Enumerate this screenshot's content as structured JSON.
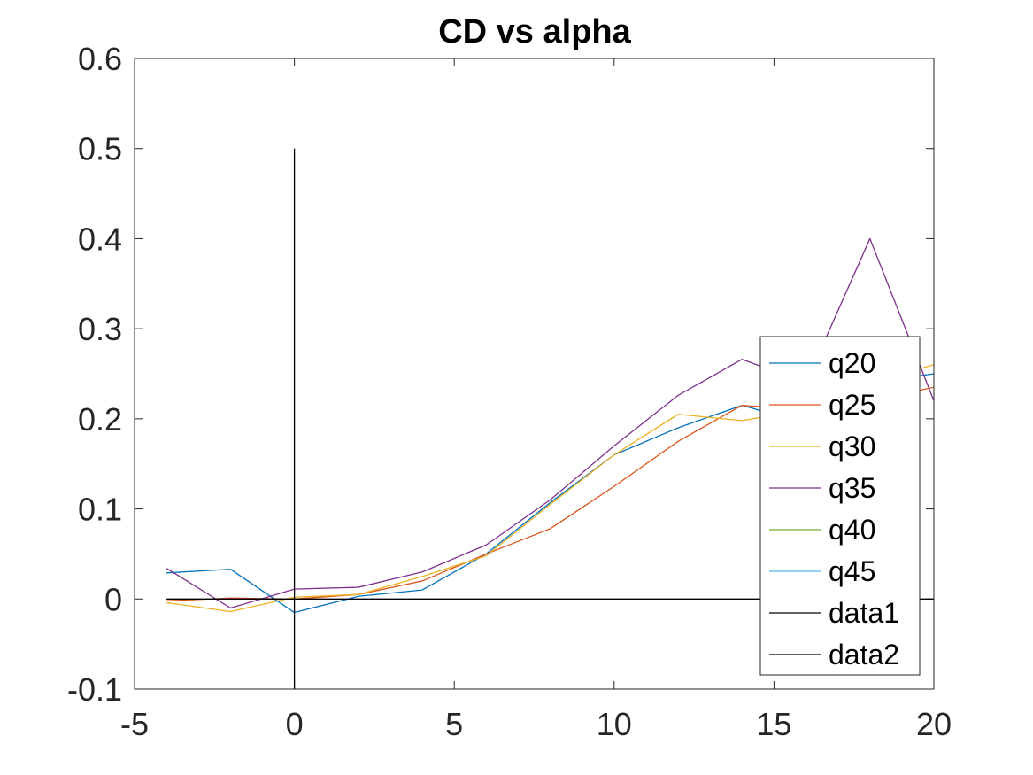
{
  "chart_data": {
    "type": "line",
    "title": "CD vs alpha",
    "xlabel": "",
    "ylabel": "",
    "xlim": [
      -5,
      20
    ],
    "ylim": [
      -0.1,
      0.6
    ],
    "x_ticks": [
      -5,
      0,
      5,
      10,
      15,
      20
    ],
    "y_ticks": [
      -0.1,
      0,
      0.1,
      0.2,
      0.3,
      0.4,
      0.5,
      0.6
    ],
    "x_tick_labels": [
      "-5",
      "0",
      "5",
      "10",
      "15",
      "20"
    ],
    "y_tick_labels": [
      "-0.1",
      "0",
      "0.1",
      "0.2",
      "0.3",
      "0.4",
      "0.5",
      "0.6"
    ],
    "grid": false,
    "legend_position": "right",
    "series": [
      {
        "name": "q20",
        "color": "#0072BD",
        "x": [
          -4,
          -2,
          0,
          2,
          4,
          6,
          8,
          10,
          12,
          14,
          16,
          18,
          20
        ],
        "y": [
          0.029,
          0.033,
          -0.015,
          0.003,
          0.01,
          0.05,
          0.107,
          0.16,
          0.19,
          0.215,
          0.195,
          0.24,
          0.25
        ]
      },
      {
        "name": "q25",
        "color": "#D95319",
        "x": [
          -4,
          -2,
          0,
          2,
          4,
          6,
          8,
          10,
          12,
          14,
          16,
          18,
          20
        ],
        "y": [
          -0.002,
          0.001,
          0.0,
          0.005,
          0.02,
          0.05,
          0.078,
          0.125,
          0.175,
          0.215,
          0.21,
          0.22,
          0.235
        ]
      },
      {
        "name": "q30",
        "color": "#EDB120",
        "x": [
          -4,
          -2,
          0,
          2,
          4,
          6,
          8,
          10,
          12,
          14,
          16,
          18,
          20
        ],
        "y": [
          -0.004,
          -0.014,
          0.002,
          0.005,
          0.025,
          0.048,
          0.105,
          0.16,
          0.205,
          0.198,
          0.21,
          0.24,
          0.26
        ]
      },
      {
        "name": "q35",
        "color": "#7E2F8E",
        "x": [
          -4,
          -2,
          0,
          2,
          4,
          6,
          8,
          10,
          12,
          14,
          16,
          18,
          20
        ],
        "y": [
          0.034,
          -0.01,
          0.011,
          0.013,
          0.03,
          0.06,
          0.11,
          0.17,
          0.226,
          0.266,
          0.24,
          0.4,
          0.22
        ]
      },
      {
        "name": "q40",
        "color": "#77AC30",
        "x": [],
        "y": []
      },
      {
        "name": "q45",
        "color": "#4DBEEE",
        "x": [],
        "y": []
      },
      {
        "name": "data1",
        "color": "#000000",
        "x": [
          -4,
          20
        ],
        "y": [
          0,
          0
        ]
      },
      {
        "name": "data2",
        "color": "#000000",
        "x": [
          0,
          0
        ],
        "y": [
          -0.1,
          0.5
        ]
      }
    ]
  }
}
